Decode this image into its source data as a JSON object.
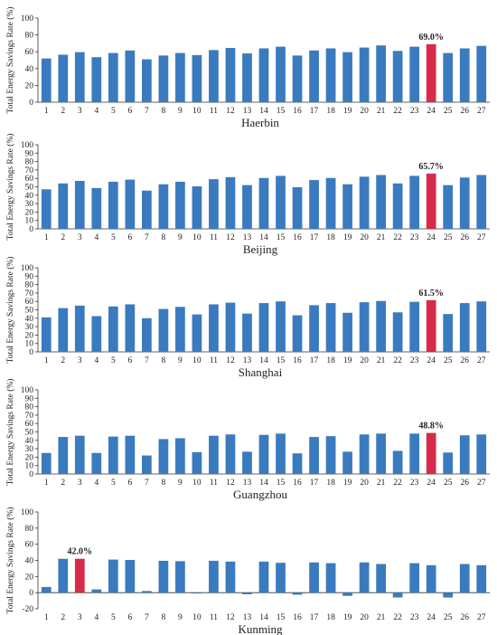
{
  "colors": {
    "bar": "#3a7bbf",
    "highlight": "#d62b4a",
    "axis": "#333333"
  },
  "chart_data": [
    {
      "type": "bar",
      "title": "Haerbin",
      "ylabel": "Total Energy Savings Rate (%)",
      "ylim": [
        0,
        100
      ],
      "yticks": [
        0,
        20,
        40,
        60,
        80,
        100
      ],
      "categories": [
        "1",
        "2",
        "3",
        "4",
        "5",
        "6",
        "7",
        "8",
        "9",
        "10",
        "11",
        "12",
        "13",
        "14",
        "15",
        "16",
        "17",
        "18",
        "19",
        "20",
        "21",
        "22",
        "23",
        "24",
        "25",
        "26",
        "27"
      ],
      "values": [
        52.0,
        56.5,
        59.5,
        53.5,
        58.5,
        61.5,
        51.0,
        55.5,
        58.5,
        56.0,
        62.0,
        64.5,
        58.0,
        64.0,
        66.0,
        55.5,
        61.5,
        64.0,
        59.5,
        65.0,
        67.5,
        61.0,
        66.0,
        69.0,
        58.5,
        64.0,
        67.0
      ],
      "highlight_index": 23,
      "highlight_label": "69.0%"
    },
    {
      "type": "bar",
      "title": "Beijing",
      "ylabel": "Total Energy Savings Rate (%)",
      "ylim": [
        0,
        100
      ],
      "yticks": [
        0,
        10,
        20,
        30,
        40,
        50,
        60,
        70,
        80,
        90,
        100
      ],
      "categories": [
        "1",
        "2",
        "3",
        "4",
        "5",
        "6",
        "7",
        "8",
        "9",
        "10",
        "11",
        "12",
        "13",
        "14",
        "15",
        "16",
        "17",
        "18",
        "19",
        "20",
        "21",
        "22",
        "23",
        "24",
        "25",
        "26",
        "27"
      ],
      "values": [
        47.0,
        54.0,
        57.0,
        48.5,
        56.0,
        58.5,
        45.5,
        53.0,
        56.0,
        50.5,
        59.0,
        61.5,
        52.0,
        60.5,
        63.0,
        49.5,
        58.0,
        60.5,
        53.0,
        62.0,
        64.0,
        54.0,
        63.0,
        65.7,
        52.0,
        61.0,
        64.0
      ],
      "highlight_index": 23,
      "highlight_label": "65.7%"
    },
    {
      "type": "bar",
      "title": "Shanghai",
      "ylabel": "Total Energy Savings Rate (%)",
      "ylim": [
        0,
        100
      ],
      "yticks": [
        0,
        10,
        20,
        30,
        40,
        50,
        60,
        70,
        80,
        90,
        100
      ],
      "categories": [
        "1",
        "2",
        "3",
        "4",
        "5",
        "6",
        "7",
        "8",
        "9",
        "10",
        "11",
        "12",
        "13",
        "14",
        "15",
        "16",
        "17",
        "18",
        "19",
        "20",
        "21",
        "22",
        "23",
        "24",
        "25",
        "26",
        "27"
      ],
      "values": [
        41.0,
        52.0,
        55.0,
        42.5,
        54.0,
        56.5,
        40.0,
        51.0,
        53.5,
        44.5,
        56.5,
        58.5,
        45.5,
        58.0,
        60.0,
        43.5,
        55.5,
        58.0,
        46.5,
        59.0,
        60.5,
        47.0,
        59.5,
        61.5,
        45.0,
        58.0,
        60.0
      ],
      "highlight_index": 23,
      "highlight_label": "61.5%"
    },
    {
      "type": "bar",
      "title": "Guangzhou",
      "ylabel": "Total Energy Savings Rate (%)",
      "ylim": [
        0,
        100
      ],
      "yticks": [
        0,
        10,
        20,
        30,
        40,
        50,
        60,
        70,
        80,
        90,
        100
      ],
      "categories": [
        "1",
        "2",
        "3",
        "4",
        "5",
        "6",
        "7",
        "8",
        "9",
        "10",
        "11",
        "12",
        "13",
        "14",
        "15",
        "16",
        "17",
        "18",
        "19",
        "20",
        "21",
        "22",
        "23",
        "24",
        "25",
        "26",
        "27"
      ],
      "values": [
        25.0,
        44.0,
        45.5,
        25.0,
        44.5,
        45.5,
        22.0,
        41.5,
        42.5,
        26.0,
        45.5,
        47.0,
        26.5,
        46.5,
        48.0,
        24.5,
        44.0,
        45.0,
        26.5,
        47.0,
        48.0,
        27.5,
        48.0,
        48.8,
        25.5,
        46.0,
        47.0
      ],
      "highlight_index": 23,
      "highlight_label": "48.8%"
    },
    {
      "type": "bar",
      "title": "Kunming",
      "ylabel": "Total Energy Savings Rate (%)",
      "ylim": [
        -20,
        100
      ],
      "yticks": [
        -20,
        0,
        20,
        40,
        60,
        80,
        100
      ],
      "categories": [
        "1",
        "2",
        "3",
        "4",
        "5",
        "6",
        "7",
        "8",
        "9",
        "10",
        "11",
        "12",
        "13",
        "14",
        "15",
        "16",
        "17",
        "18",
        "19",
        "20",
        "21",
        "22",
        "23",
        "24",
        "25",
        "26",
        "27"
      ],
      "values": [
        7.0,
        42.0,
        42.0,
        4.0,
        41.0,
        40.5,
        2.0,
        39.5,
        39.0,
        -1.0,
        39.5,
        38.5,
        -2.0,
        38.5,
        37.0,
        -2.5,
        37.5,
        36.5,
        -4.0,
        37.5,
        35.5,
        -6.0,
        36.5,
        34.0,
        -6.0,
        35.5,
        34.0
      ],
      "highlight_index": 2,
      "highlight_label": "42.0%"
    }
  ]
}
